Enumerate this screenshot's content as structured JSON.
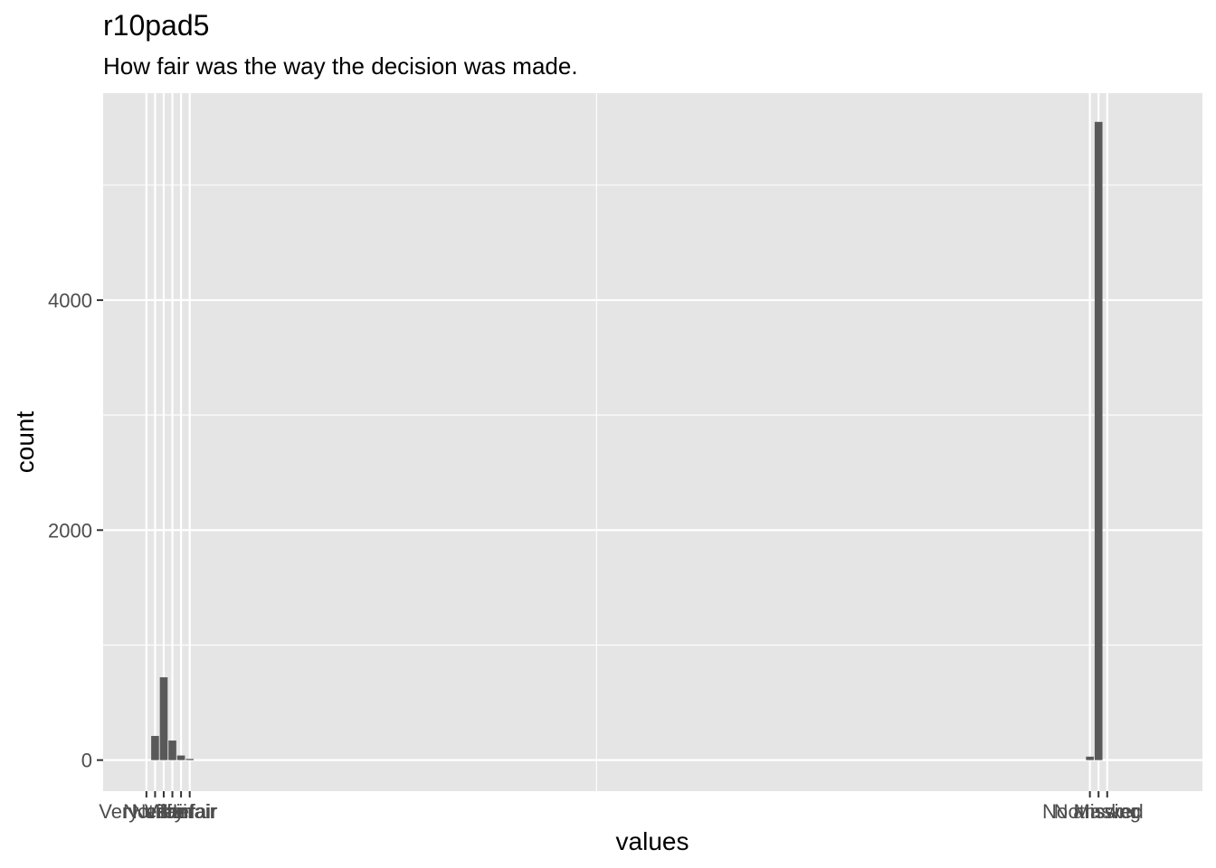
{
  "chart_data": {
    "type": "bar",
    "title": "r10pad5",
    "subtitle": "How fair was the way the decision was made.",
    "xlabel": "values",
    "ylabel": "count",
    "ylim": [
      -270,
      5800
    ],
    "xlim": [
      -7,
      120
    ],
    "y_ticks": [
      0,
      2000,
      4000
    ],
    "y_minor_ticks": [
      1000,
      3000,
      5000
    ],
    "x_minor_ticks": [
      50
    ],
    "grid": true,
    "bar_width": 0.9,
    "bar_color": "#595959",
    "panel_color": "#e5e5e5",
    "grid_color": "#ffffff",
    "categories": [
      {
        "x": -2,
        "label": "Very unfair",
        "value": 0
      },
      {
        "x": -1,
        "label": "Not fair",
        "value": 210
      },
      {
        "x": 0,
        "label": "Neither",
        "value": 720
      },
      {
        "x": 1,
        "label": "Fair",
        "value": 170
      },
      {
        "x": 2,
        "label": "Very fair",
        "value": 40
      },
      {
        "x": 3,
        "label": "Unfair",
        "value": 10
      },
      {
        "x": 107,
        "label": "No answer",
        "value": 30
      },
      {
        "x": 108,
        "label": "Not asked",
        "value": 5550
      },
      {
        "x": 109,
        "label": "Missing",
        "value": 0
      }
    ],
    "x_tick_labels": [
      "Very unfair",
      "Not fair",
      "Neither",
      "Fair",
      "Very fair",
      "Unfair",
      "No answer",
      "Not asked",
      "Missing"
    ],
    "label_ids": [
      "very-unfair",
      "not-fair",
      "neither",
      "fair",
      "very-fair",
      "unfair",
      "no-answer",
      "not-asked",
      "missing"
    ]
  }
}
